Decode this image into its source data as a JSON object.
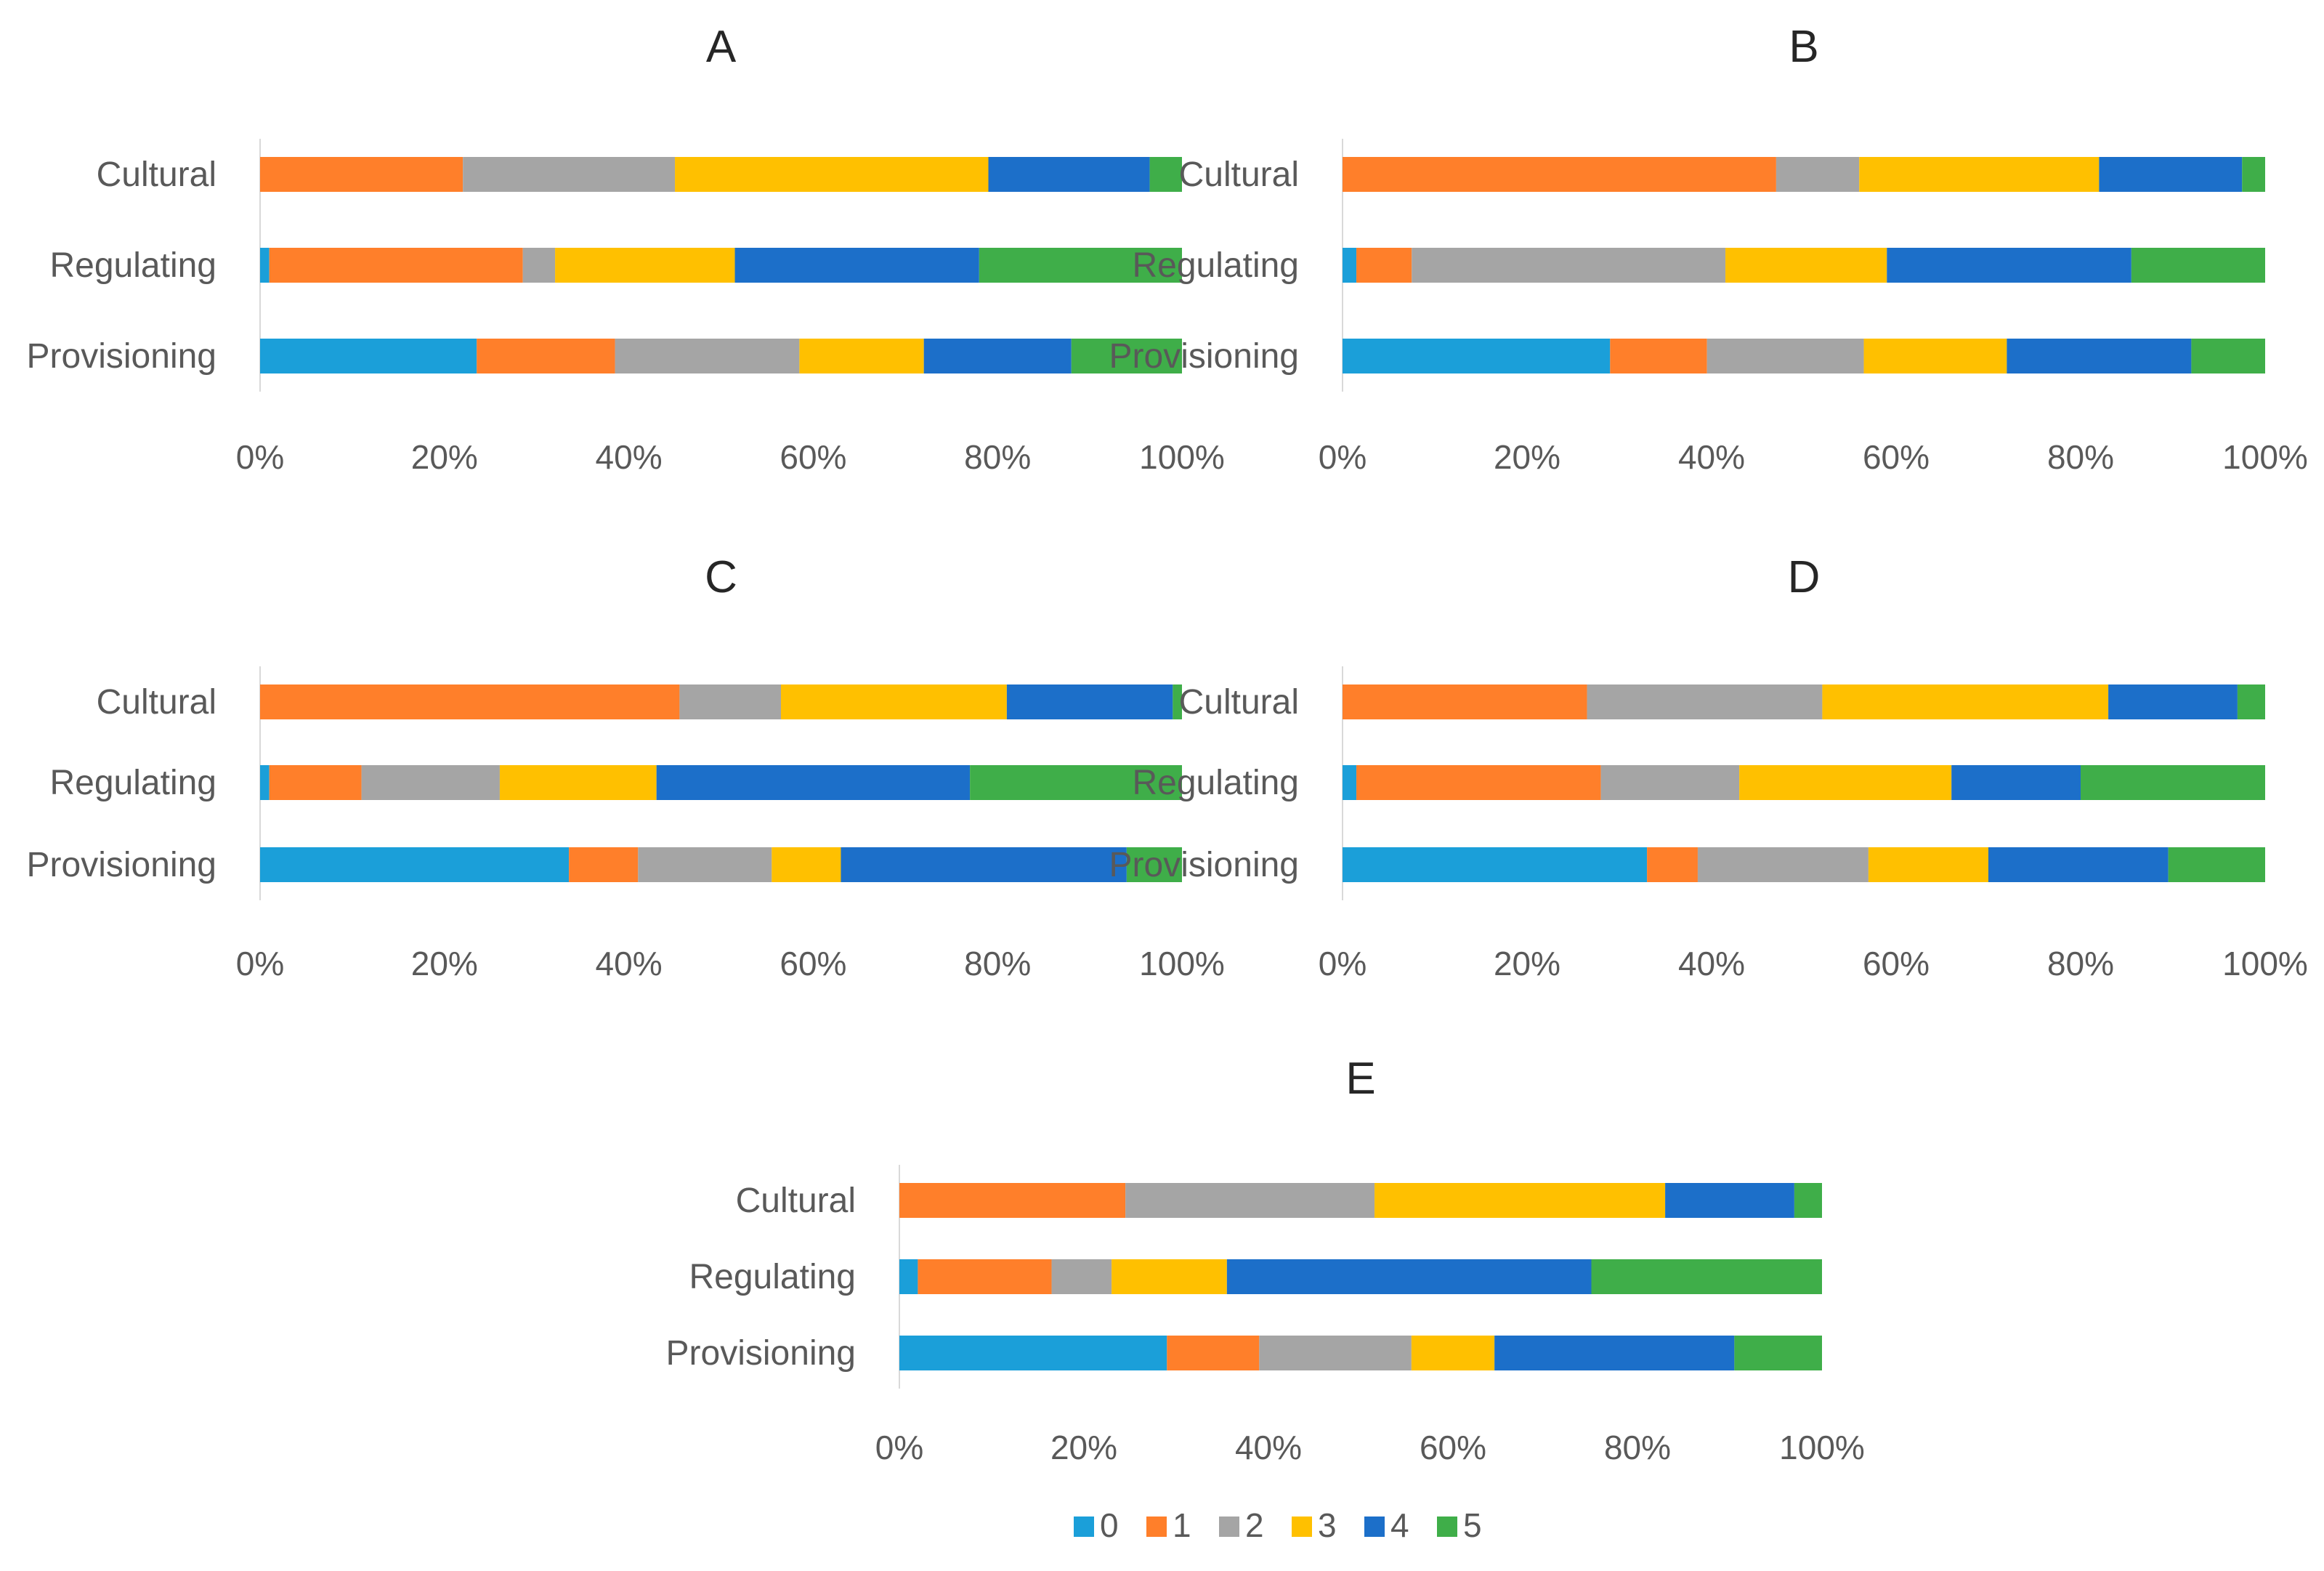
{
  "legend": [
    "0",
    "1",
    "2",
    "3",
    "4",
    "5"
  ],
  "colors": [
    "#1b9fd9",
    "#ff7f2a",
    "#a5a5a5",
    "#ffc000",
    "#1c6fc9",
    "#3fae49"
  ],
  "chart_data": [
    {
      "type": "bar",
      "orientation": "horizontal",
      "stacked": "percent",
      "title": "A",
      "categories": [
        "Cultural",
        "Regulating",
        "Provisioning"
      ],
      "series": [
        {
          "name": "0",
          "values": [
            0,
            1,
            23.5
          ]
        },
        {
          "name": "1",
          "values": [
            22,
            27.5,
            15
          ]
        },
        {
          "name": "2",
          "values": [
            23,
            3.5,
            20
          ]
        },
        {
          "name": "3",
          "values": [
            34,
            19.5,
            13.5
          ]
        },
        {
          "name": "4",
          "values": [
            17.5,
            26.5,
            16
          ]
        },
        {
          "name": "5",
          "values": [
            3.5,
            22,
            12
          ]
        }
      ],
      "xticks": [
        "0%",
        "20%",
        "40%",
        "60%",
        "80%",
        "100%"
      ],
      "xlim": [
        0,
        100
      ]
    },
    {
      "type": "bar",
      "orientation": "horizontal",
      "stacked": "percent",
      "title": "B",
      "categories": [
        "Cultural",
        "Regulating",
        "Provisioning"
      ],
      "series": [
        {
          "name": "0",
          "values": [
            0,
            1.5,
            29
          ]
        },
        {
          "name": "1",
          "values": [
            47,
            6,
            10.5
          ]
        },
        {
          "name": "2",
          "values": [
            9,
            34,
            17
          ]
        },
        {
          "name": "3",
          "values": [
            26,
            17.5,
            15.5
          ]
        },
        {
          "name": "4",
          "values": [
            15.5,
            26.5,
            20
          ]
        },
        {
          "name": "5",
          "values": [
            2.5,
            14.5,
            8
          ]
        }
      ],
      "xticks": [
        "0%",
        "20%",
        "40%",
        "60%",
        "80%",
        "100%"
      ],
      "xlim": [
        0,
        100
      ]
    },
    {
      "type": "bar",
      "orientation": "horizontal",
      "stacked": "percent",
      "title": "C",
      "categories": [
        "Cultural",
        "Regulating",
        "Provisioning"
      ],
      "series": [
        {
          "name": "0",
          "values": [
            0,
            1,
            33.5
          ]
        },
        {
          "name": "1",
          "values": [
            45.5,
            10,
            7.5
          ]
        },
        {
          "name": "2",
          "values": [
            11,
            15,
            14.5
          ]
        },
        {
          "name": "3",
          "values": [
            24.5,
            17,
            7.5
          ]
        },
        {
          "name": "4",
          "values": [
            18,
            34,
            31
          ]
        },
        {
          "name": "5",
          "values": [
            1,
            23,
            6
          ]
        }
      ],
      "xticks": [
        "0%",
        "20%",
        "40%",
        "60%",
        "80%",
        "100%"
      ],
      "xlim": [
        0,
        100
      ]
    },
    {
      "type": "bar",
      "orientation": "horizontal",
      "stacked": "percent",
      "title": "D",
      "categories": [
        "Cultural",
        "Regulating",
        "Provisioning"
      ],
      "series": [
        {
          "name": "0",
          "values": [
            0,
            1.5,
            33
          ]
        },
        {
          "name": "1",
          "values": [
            26.5,
            26.5,
            5.5
          ]
        },
        {
          "name": "2",
          "values": [
            25.5,
            15,
            18.5
          ]
        },
        {
          "name": "3",
          "values": [
            31,
            23,
            13
          ]
        },
        {
          "name": "4",
          "values": [
            14,
            14,
            19.5
          ]
        },
        {
          "name": "5",
          "values": [
            3,
            20,
            10.5
          ]
        }
      ],
      "xticks": [
        "0%",
        "20%",
        "40%",
        "60%",
        "80%",
        "100%"
      ],
      "xlim": [
        0,
        100
      ]
    },
    {
      "type": "bar",
      "orientation": "horizontal",
      "stacked": "percent",
      "title": "E",
      "categories": [
        "Cultural",
        "Regulating",
        "Provisioning"
      ],
      "series": [
        {
          "name": "0",
          "values": [
            0,
            2,
            29
          ]
        },
        {
          "name": "1",
          "values": [
            24.5,
            14.5,
            10
          ]
        },
        {
          "name": "2",
          "values": [
            27,
            6.5,
            16.5
          ]
        },
        {
          "name": "3",
          "values": [
            31.5,
            12.5,
            9
          ]
        },
        {
          "name": "4",
          "values": [
            14,
            39.5,
            26
          ]
        },
        {
          "name": "5",
          "values": [
            3,
            25,
            9.5
          ]
        }
      ],
      "xticks": [
        "0%",
        "20%",
        "40%",
        "60%",
        "80%",
        "100%"
      ],
      "xlim": [
        0,
        100
      ]
    }
  ]
}
